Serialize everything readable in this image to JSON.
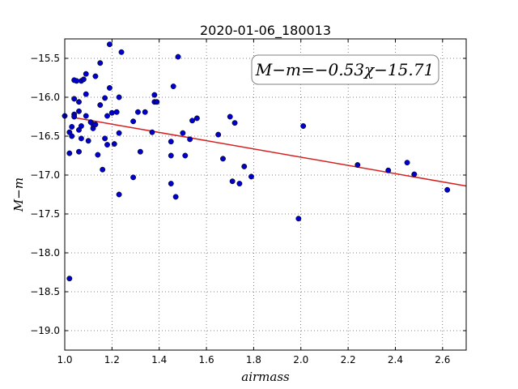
{
  "chart_data": {
    "type": "scatter",
    "title": "2020-01-06_180013",
    "xlabel": "airmass",
    "ylabel": "M−m",
    "xlim": [
      1.0,
      2.7
    ],
    "ylim": [
      -19.25,
      -15.25
    ],
    "y_inverted": true,
    "grid": true,
    "x_ticks": [
      1.0,
      1.2,
      1.4,
      1.6,
      1.8,
      2.0,
      2.2,
      2.4,
      2.6
    ],
    "x_tick_labels": [
      "1.0",
      "1.2",
      "1.4",
      "1.6",
      "1.8",
      "2.0",
      "2.2",
      "2.4",
      "2.6"
    ],
    "y_ticks": [
      -15.5,
      -16.0,
      -16.5,
      -17.0,
      -17.5,
      -18.0,
      -18.5,
      -19.0
    ],
    "y_tick_labels": [
      "−15.5",
      "−16.0",
      "−16.5",
      "−17.0",
      "−17.5",
      "−18.0",
      "−18.5",
      "−19.0"
    ],
    "annotation": "M−m=−0.53χ−15.71",
    "fit": {
      "slope": -0.53,
      "intercept": -15.71,
      "x_range": [
        1.04,
        2.7
      ],
      "color": "#d62020"
    },
    "point_color": "#0000c8",
    "points": [
      [
        1.0,
        -16.24
      ],
      [
        1.02,
        -16.72
      ],
      [
        1.02,
        -16.45
      ],
      [
        1.02,
        -18.33
      ],
      [
        1.03,
        -16.38
      ],
      [
        1.03,
        -16.5
      ],
      [
        1.04,
        -16.02
      ],
      [
        1.04,
        -16.22
      ],
      [
        1.04,
        -16.25
      ],
      [
        1.04,
        -15.78
      ],
      [
        1.05,
        -15.79
      ],
      [
        1.06,
        -16.06
      ],
      [
        1.06,
        -16.18
      ],
      [
        1.06,
        -16.7
      ],
      [
        1.06,
        -16.42
      ],
      [
        1.07,
        -16.37
      ],
      [
        1.07,
        -15.79
      ],
      [
        1.07,
        -16.53
      ],
      [
        1.08,
        -15.77
      ],
      [
        1.09,
        -15.96
      ],
      [
        1.09,
        -15.7
      ],
      [
        1.09,
        -16.24
      ],
      [
        1.1,
        -16.56
      ],
      [
        1.11,
        -16.32
      ],
      [
        1.12,
        -16.4
      ],
      [
        1.12,
        -16.35
      ],
      [
        1.13,
        -16.35
      ],
      [
        1.13,
        -15.73
      ],
      [
        1.14,
        -16.74
      ],
      [
        1.15,
        -16.1
      ],
      [
        1.15,
        -15.56
      ],
      [
        1.16,
        -16.93
      ],
      [
        1.17,
        -16.53
      ],
      [
        1.17,
        -16.01
      ],
      [
        1.18,
        -16.24
      ],
      [
        1.18,
        -16.61
      ],
      [
        1.19,
        -15.88
      ],
      [
        1.19,
        -15.32
      ],
      [
        1.2,
        -16.2
      ],
      [
        1.21,
        -16.6
      ],
      [
        1.22,
        -16.19
      ],
      [
        1.23,
        -16.46
      ],
      [
        1.23,
        -16.0
      ],
      [
        1.23,
        -17.25
      ],
      [
        1.24,
        -15.42
      ],
      [
        1.29,
        -16.31
      ],
      [
        1.29,
        -17.03
      ],
      [
        1.31,
        -16.19
      ],
      [
        1.32,
        -16.7
      ],
      [
        1.34,
        -16.19
      ],
      [
        1.37,
        -16.45
      ],
      [
        1.38,
        -16.06
      ],
      [
        1.38,
        -15.97
      ],
      [
        1.39,
        -16.06
      ],
      [
        1.45,
        -16.57
      ],
      [
        1.45,
        -16.75
      ],
      [
        1.45,
        -17.11
      ],
      [
        1.46,
        -15.86
      ],
      [
        1.47,
        -17.28
      ],
      [
        1.48,
        -15.48
      ],
      [
        1.5,
        -16.46
      ],
      [
        1.51,
        -16.75
      ],
      [
        1.53,
        -16.54
      ],
      [
        1.54,
        -16.3
      ],
      [
        1.56,
        -16.27
      ],
      [
        1.65,
        -16.48
      ],
      [
        1.67,
        -16.79
      ],
      [
        1.7,
        -16.25
      ],
      [
        1.71,
        -17.08
      ],
      [
        1.72,
        -16.33
      ],
      [
        1.74,
        -17.11
      ],
      [
        1.76,
        -16.89
      ],
      [
        1.79,
        -17.02
      ],
      [
        1.99,
        -17.56
      ],
      [
        2.01,
        -16.37
      ],
      [
        2.24,
        -16.87
      ],
      [
        2.37,
        -16.94
      ],
      [
        2.45,
        -16.84
      ],
      [
        2.48,
        -16.99
      ],
      [
        2.62,
        -17.19
      ]
    ]
  }
}
